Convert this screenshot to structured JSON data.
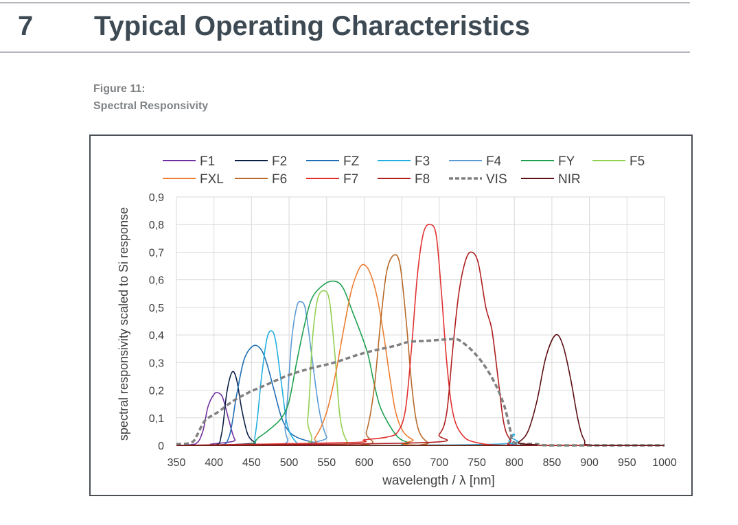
{
  "header": {
    "section_number": "7",
    "section_title": "Typical Operating Characteristics"
  },
  "figure": {
    "label": "Figure 11:",
    "caption": "Spectral Responsivity"
  },
  "chart_data": {
    "type": "line",
    "xlabel": "wavelength / λ [nm]",
    "ylabel": "spectral responsivity scaled to Si response",
    "xlim": [
      350,
      1000
    ],
    "ylim": [
      0,
      0.9
    ],
    "xticks": [
      "350",
      "400",
      "450",
      "500",
      "550",
      "600",
      "650",
      "700",
      "750",
      "800",
      "850",
      "900",
      "950",
      "1000"
    ],
    "yticks": [
      "0",
      "0,1",
      "0,2",
      "0,3",
      "0,4",
      "0,5",
      "0,6",
      "0,7",
      "0,8",
      "0,9"
    ],
    "grid": true,
    "legend_position": "top",
    "series": [
      {
        "name": "F1",
        "color": "#7030a0",
        "points": [
          [
            350,
            0
          ],
          [
            375,
            0.005
          ],
          [
            385,
            0.05
          ],
          [
            392,
            0.14
          ],
          [
            400,
            0.185
          ],
          [
            406,
            0.19
          ],
          [
            412,
            0.17
          ],
          [
            420,
            0.09
          ],
          [
            428,
            0.02
          ],
          [
            440,
            0
          ],
          [
            1000,
            0
          ]
        ]
      },
      {
        "name": "F2",
        "color": "#0b1f45",
        "points": [
          [
            350,
            0
          ],
          [
            400,
            0
          ],
          [
            410,
            0.04
          ],
          [
            417,
            0.19
          ],
          [
            424,
            0.265
          ],
          [
            430,
            0.24
          ],
          [
            437,
            0.13
          ],
          [
            445,
            0.04
          ],
          [
            455,
            0.01
          ],
          [
            465,
            0
          ],
          [
            1000,
            0
          ]
        ]
      },
      {
        "name": "FZ",
        "color": "#1f6fb4",
        "points": [
          [
            350,
            0
          ],
          [
            405,
            0
          ],
          [
            420,
            0.03
          ],
          [
            430,
            0.18
          ],
          [
            440,
            0.31
          ],
          [
            452,
            0.36
          ],
          [
            462,
            0.35
          ],
          [
            470,
            0.3
          ],
          [
            480,
            0.2
          ],
          [
            490,
            0.1
          ],
          [
            500,
            0.05
          ],
          [
            510,
            0.03
          ],
          [
            520,
            0.02
          ],
          [
            535,
            0.01
          ],
          [
            560,
            0
          ],
          [
            1000,
            0
          ]
        ]
      },
      {
        "name": "F3",
        "color": "#22aee0",
        "points": [
          [
            350,
            0
          ],
          [
            445,
            0
          ],
          [
            455,
            0.04
          ],
          [
            463,
            0.24
          ],
          [
            470,
            0.38
          ],
          [
            476,
            0.415
          ],
          [
            482,
            0.38
          ],
          [
            490,
            0.22
          ],
          [
            498,
            0.07
          ],
          [
            510,
            0.01
          ],
          [
            520,
            0
          ],
          [
            780,
            0.005
          ],
          [
            795,
            0.03
          ],
          [
            800,
            0.04
          ],
          [
            810,
            0
          ],
          [
            1000,
            0
          ]
        ]
      },
      {
        "name": "F4",
        "color": "#5b9bd5",
        "points": [
          [
            350,
            0
          ],
          [
            485,
            0
          ],
          [
            495,
            0.08
          ],
          [
            503,
            0.37
          ],
          [
            510,
            0.5
          ],
          [
            516,
            0.52
          ],
          [
            522,
            0.49
          ],
          [
            530,
            0.33
          ],
          [
            540,
            0.13
          ],
          [
            550,
            0.03
          ],
          [
            560,
            0
          ],
          [
            1000,
            0
          ]
        ]
      },
      {
        "name": "FY",
        "color": "#1ea050",
        "points": [
          [
            350,
            0
          ],
          [
            440,
            0
          ],
          [
            460,
            0.03
          ],
          [
            475,
            0.06
          ],
          [
            490,
            0.1
          ],
          [
            500,
            0.16
          ],
          [
            510,
            0.3
          ],
          [
            520,
            0.43
          ],
          [
            530,
            0.53
          ],
          [
            545,
            0.58
          ],
          [
            560,
            0.595
          ],
          [
            572,
            0.57
          ],
          [
            585,
            0.48
          ],
          [
            595,
            0.41
          ],
          [
            605,
            0.33
          ],
          [
            612,
            0.24
          ],
          [
            620,
            0.15
          ],
          [
            630,
            0.09
          ],
          [
            645,
            0.03
          ],
          [
            660,
            0.01
          ],
          [
            680,
            0
          ],
          [
            1000,
            0
          ]
        ]
      },
      {
        "name": "F5",
        "color": "#92d050",
        "points": [
          [
            350,
            0
          ],
          [
            515,
            0
          ],
          [
            525,
            0.1
          ],
          [
            531,
            0.38
          ],
          [
            538,
            0.53
          ],
          [
            547,
            0.56
          ],
          [
            554,
            0.52
          ],
          [
            561,
            0.33
          ],
          [
            568,
            0.1
          ],
          [
            578,
            0.01
          ],
          [
            590,
            0
          ],
          [
            1000,
            0
          ]
        ]
      },
      {
        "name": "FXL",
        "color": "#ed7d31",
        "points": [
          [
            350,
            0
          ],
          [
            520,
            0
          ],
          [
            535,
            0.03
          ],
          [
            550,
            0.12
          ],
          [
            562,
            0.26
          ],
          [
            572,
            0.41
          ],
          [
            582,
            0.55
          ],
          [
            590,
            0.62
          ],
          [
            598,
            0.655
          ],
          [
            607,
            0.63
          ],
          [
            617,
            0.54
          ],
          [
            626,
            0.4
          ],
          [
            634,
            0.25
          ],
          [
            642,
            0.12
          ],
          [
            652,
            0.05
          ],
          [
            665,
            0.02
          ],
          [
            680,
            0
          ],
          [
            1000,
            0
          ]
        ]
      },
      {
        "name": "F6",
        "color": "#b86a2a",
        "points": [
          [
            350,
            0
          ],
          [
            590,
            0
          ],
          [
            603,
            0.05
          ],
          [
            613,
            0.2
          ],
          [
            622,
            0.45
          ],
          [
            630,
            0.63
          ],
          [
            640,
            0.69
          ],
          [
            648,
            0.65
          ],
          [
            656,
            0.45
          ],
          [
            664,
            0.2
          ],
          [
            672,
            0.06
          ],
          [
            685,
            0.01
          ],
          [
            700,
            0
          ],
          [
            1000,
            0
          ]
        ]
      },
      {
        "name": "F7",
        "color": "#e03030",
        "points": [
          [
            350,
            0
          ],
          [
            580,
            0.01
          ],
          [
            600,
            0.02
          ],
          [
            630,
            0.03
          ],
          [
            645,
            0.05
          ],
          [
            655,
            0.13
          ],
          [
            663,
            0.35
          ],
          [
            671,
            0.62
          ],
          [
            679,
            0.77
          ],
          [
            688,
            0.8
          ],
          [
            696,
            0.76
          ],
          [
            703,
            0.55
          ],
          [
            710,
            0.3
          ],
          [
            718,
            0.12
          ],
          [
            730,
            0.04
          ],
          [
            750,
            0.01
          ],
          [
            800,
            0
          ],
          [
            1000,
            0
          ]
        ]
      },
      {
        "name": "F8",
        "color": "#b01e1e",
        "points": [
          [
            350,
            0
          ],
          [
            680,
            0.01
          ],
          [
            700,
            0.04
          ],
          [
            710,
            0.12
          ],
          [
            718,
            0.35
          ],
          [
            726,
            0.55
          ],
          [
            735,
            0.67
          ],
          [
            743,
            0.7
          ],
          [
            752,
            0.66
          ],
          [
            762,
            0.5
          ],
          [
            770,
            0.42
          ],
          [
            778,
            0.25
          ],
          [
            786,
            0.08
          ],
          [
            795,
            0.02
          ],
          [
            810,
            0
          ],
          [
            1000,
            0
          ]
        ]
      },
      {
        "name": "VIS",
        "color": "#808080",
        "dashed": true,
        "points": [
          [
            350,
            0.005
          ],
          [
            370,
            0.01
          ],
          [
            378,
            0.04
          ],
          [
            388,
            0.09
          ],
          [
            405,
            0.12
          ],
          [
            425,
            0.16
          ],
          [
            445,
            0.19
          ],
          [
            470,
            0.22
          ],
          [
            500,
            0.255
          ],
          [
            530,
            0.28
          ],
          [
            560,
            0.3
          ],
          [
            600,
            0.335
          ],
          [
            640,
            0.36
          ],
          [
            660,
            0.375
          ],
          [
            690,
            0.38
          ],
          [
            720,
            0.385
          ],
          [
            730,
            0.375
          ],
          [
            745,
            0.34
          ],
          [
            760,
            0.29
          ],
          [
            775,
            0.22
          ],
          [
            787,
            0.14
          ],
          [
            795,
            0.05
          ],
          [
            800,
            0.01
          ],
          [
            830,
            0.005
          ],
          [
            850,
            0
          ],
          [
            1000,
            0
          ]
        ]
      },
      {
        "name": "NIR",
        "color": "#5c0f14",
        "points": [
          [
            350,
            0
          ],
          [
            795,
            0
          ],
          [
            805,
            0.01
          ],
          [
            818,
            0.05
          ],
          [
            830,
            0.16
          ],
          [
            842,
            0.32
          ],
          [
            855,
            0.4
          ],
          [
            865,
            0.36
          ],
          [
            875,
            0.24
          ],
          [
            885,
            0.09
          ],
          [
            893,
            0.02
          ],
          [
            905,
            0
          ],
          [
            1000,
            0
          ]
        ]
      }
    ]
  }
}
